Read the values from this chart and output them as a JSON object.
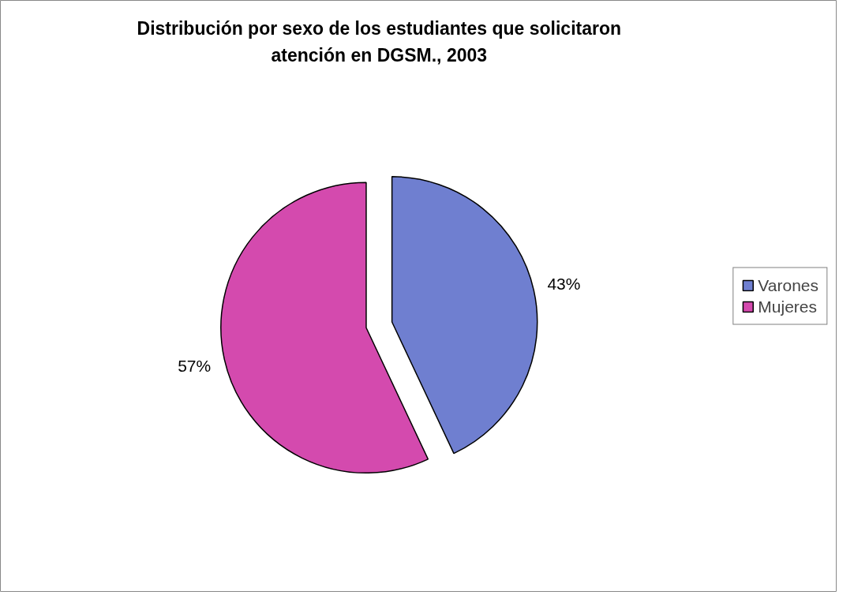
{
  "chart_data": {
    "type": "pie",
    "title": "Distribución por sexo de los estudiantes que solicitaron\natención en DGSM., 2003",
    "categories": [
      "Varones",
      "Mujeres"
    ],
    "values": [
      43,
      57
    ],
    "colors": [
      "#6f7fd0",
      "#d44aae"
    ],
    "value_labels": [
      "43%",
      "57%"
    ],
    "legend": "right"
  }
}
